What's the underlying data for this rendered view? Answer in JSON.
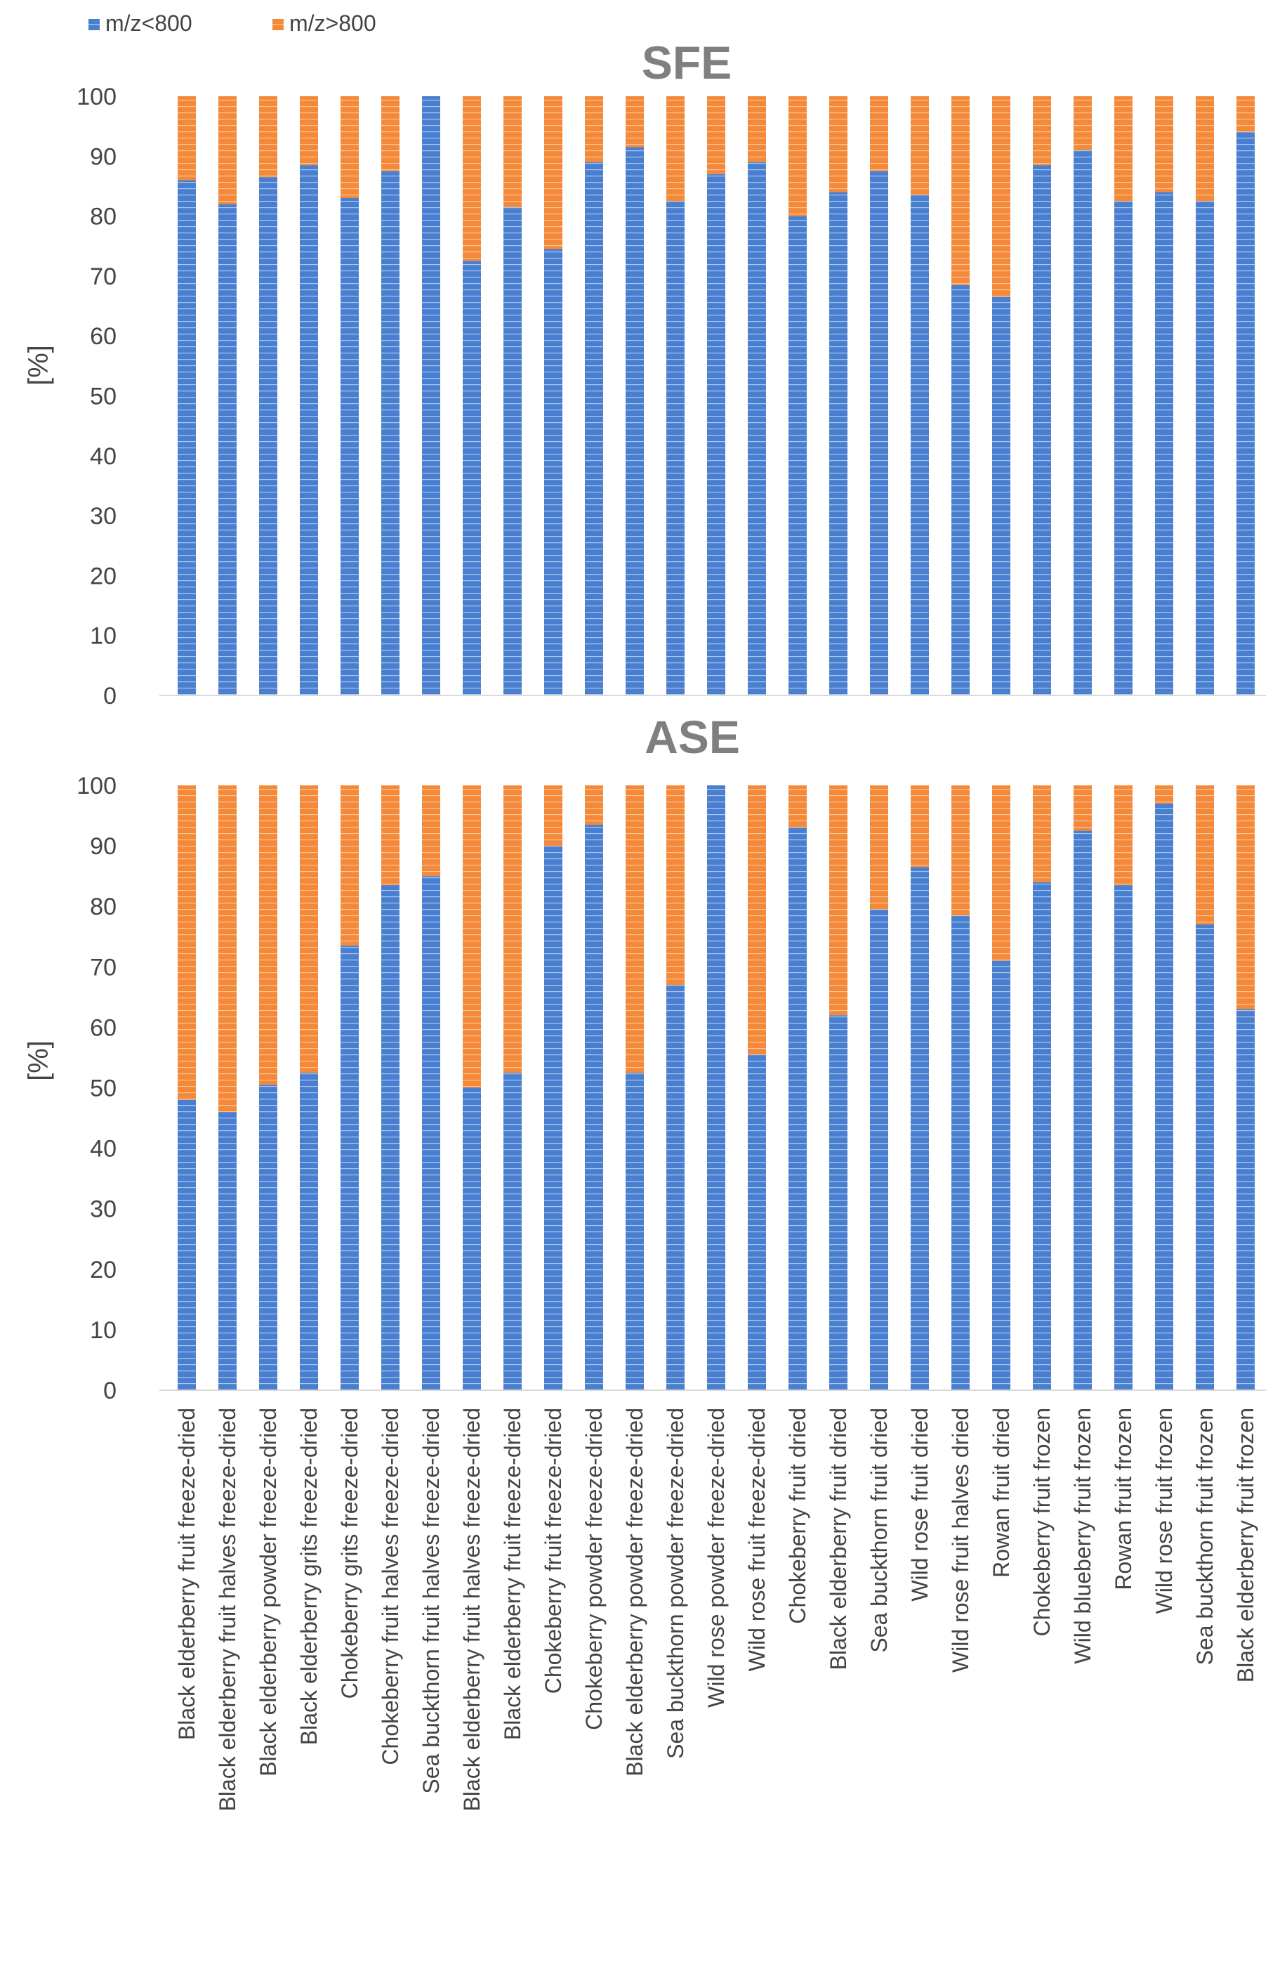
{
  "legend": [
    {
      "name": "m/z<800",
      "color": "#4a7fd0"
    },
    {
      "name": "m/z>800",
      "color": "#f4893a"
    }
  ],
  "colors": {
    "low": "#4a7fd0",
    "high": "#f4893a",
    "title": "#7f7f7f",
    "text": "#444444",
    "axis": "#d9d9d9"
  },
  "chart_data": [
    {
      "type": "bar",
      "stacked": true,
      "title": "SFE",
      "ylabel": "[%]",
      "ylim": [
        0,
        100
      ],
      "yticks": [
        0,
        10,
        20,
        30,
        40,
        50,
        60,
        70,
        80,
        90,
        100
      ],
      "grid": false,
      "legend_position": "top-left",
      "categories": [
        "Black elderberry fruit freeze-dried",
        "Black elderberry fruit halves freeze-dried",
        "Black elderberry powder freeze-dried",
        "Black elderberry grits freeze-dried",
        "Chokeberry grits freeze-dried",
        "Chokeberry fruit halves freeze-dried",
        "Sea buckthorn fruit halves freeze-dried",
        "Black elderberry fruit halves freeze-dried",
        "Black elderberry fruit freeze-dried",
        "Chokeberry fruit freeze-dried",
        "Chokeberry powder freeze-dried",
        "Black elderberry powder freeze-dried",
        "Sea buckthorn powder freeze-dried",
        "Wild rose powder freeze-dried",
        "Wild rose fruit freeze-dried",
        "Chokeberry fruit dried",
        "Black elderberry fruit dried",
        "Sea buckthorn fruit dried",
        "Wild rose fruit dried",
        "Wild rose fruit halves dried",
        "Rowan fruit dried",
        "Chokeberry fruit frozen",
        "Wild blueberry fruit frozen",
        "Rowan fruit frozen",
        "Wild rose fruit frozen",
        "Sea buckthorn fruit frozen",
        "Black elderberry fruit frozen"
      ],
      "series": [
        {
          "name": "m/z<800",
          "values": [
            86,
            82,
            86.5,
            88.5,
            83,
            87.5,
            100,
            72.5,
            81.5,
            74.5,
            89,
            91.5,
            82.5,
            87,
            89,
            80,
            84,
            87.5,
            83.5,
            68.5,
            66.5,
            88.5,
            91,
            82.5,
            84,
            82.5,
            94
          ]
        },
        {
          "name": "m/z>800",
          "values": [
            14,
            18,
            13.5,
            11.5,
            17,
            12.5,
            0,
            27.5,
            18.5,
            25.5,
            11,
            8.5,
            17.5,
            13,
            11,
            20,
            16,
            12.5,
            16.5,
            31.5,
            33.5,
            11.5,
            9,
            17.5,
            16,
            17.5,
            6
          ]
        }
      ]
    },
    {
      "type": "bar",
      "stacked": true,
      "title": "ASE",
      "ylabel": "[%]",
      "ylim": [
        0,
        100
      ],
      "yticks": [
        0,
        10,
        20,
        30,
        40,
        50,
        60,
        70,
        80,
        90,
        100
      ],
      "grid": false,
      "categories": [
        "Black elderberry fruit freeze-dried",
        "Black elderberry fruit halves freeze-dried",
        "Black elderberry powder freeze-dried",
        "Black elderberry grits freeze-dried",
        "Chokeberry grits freeze-dried",
        "Chokeberry fruit halves freeze-dried",
        "Sea buckthorn fruit halves freeze-dried",
        "Black elderberry fruit halves freeze-dried",
        "Black elderberry fruit freeze-dried",
        "Chokeberry fruit freeze-dried",
        "Chokeberry powder freeze-dried",
        "Black elderberry powder freeze-dried",
        "Sea buckthorn powder freeze-dried",
        "Wild rose powder freeze-dried",
        "Wild rose fruit freeze-dried",
        "Chokeberry fruit dried",
        "Black elderberry fruit dried",
        "Sea buckthorn fruit dried",
        "Wild rose fruit dried",
        "Wild rose fruit halves dried",
        "Rowan fruit dried",
        "Chokeberry fruit frozen",
        "Wild blueberry fruit frozen",
        "Rowan fruit frozen",
        "Wild rose fruit frozen",
        "Sea buckthorn fruit frozen",
        "Black elderberry fruit frozen"
      ],
      "series": [
        {
          "name": "m/z<800",
          "values": [
            48,
            46,
            50.5,
            52.5,
            73.5,
            83.5,
            85,
            50,
            52.5,
            90,
            93.5,
            52.5,
            67,
            100,
            55.5,
            93,
            62,
            79.5,
            86.5,
            78.5,
            71,
            84,
            92.5,
            83.5,
            97,
            77,
            63
          ]
        },
        {
          "name": "m/z>800",
          "values": [
            52,
            54,
            49.5,
            47.5,
            26.5,
            16.5,
            15,
            50,
            47.5,
            10,
            6.5,
            47.5,
            33,
            0,
            44.5,
            7,
            38,
            20.5,
            13.5,
            21.5,
            29,
            16,
            7.5,
            16.5,
            3,
            23,
            37
          ]
        }
      ]
    }
  ]
}
